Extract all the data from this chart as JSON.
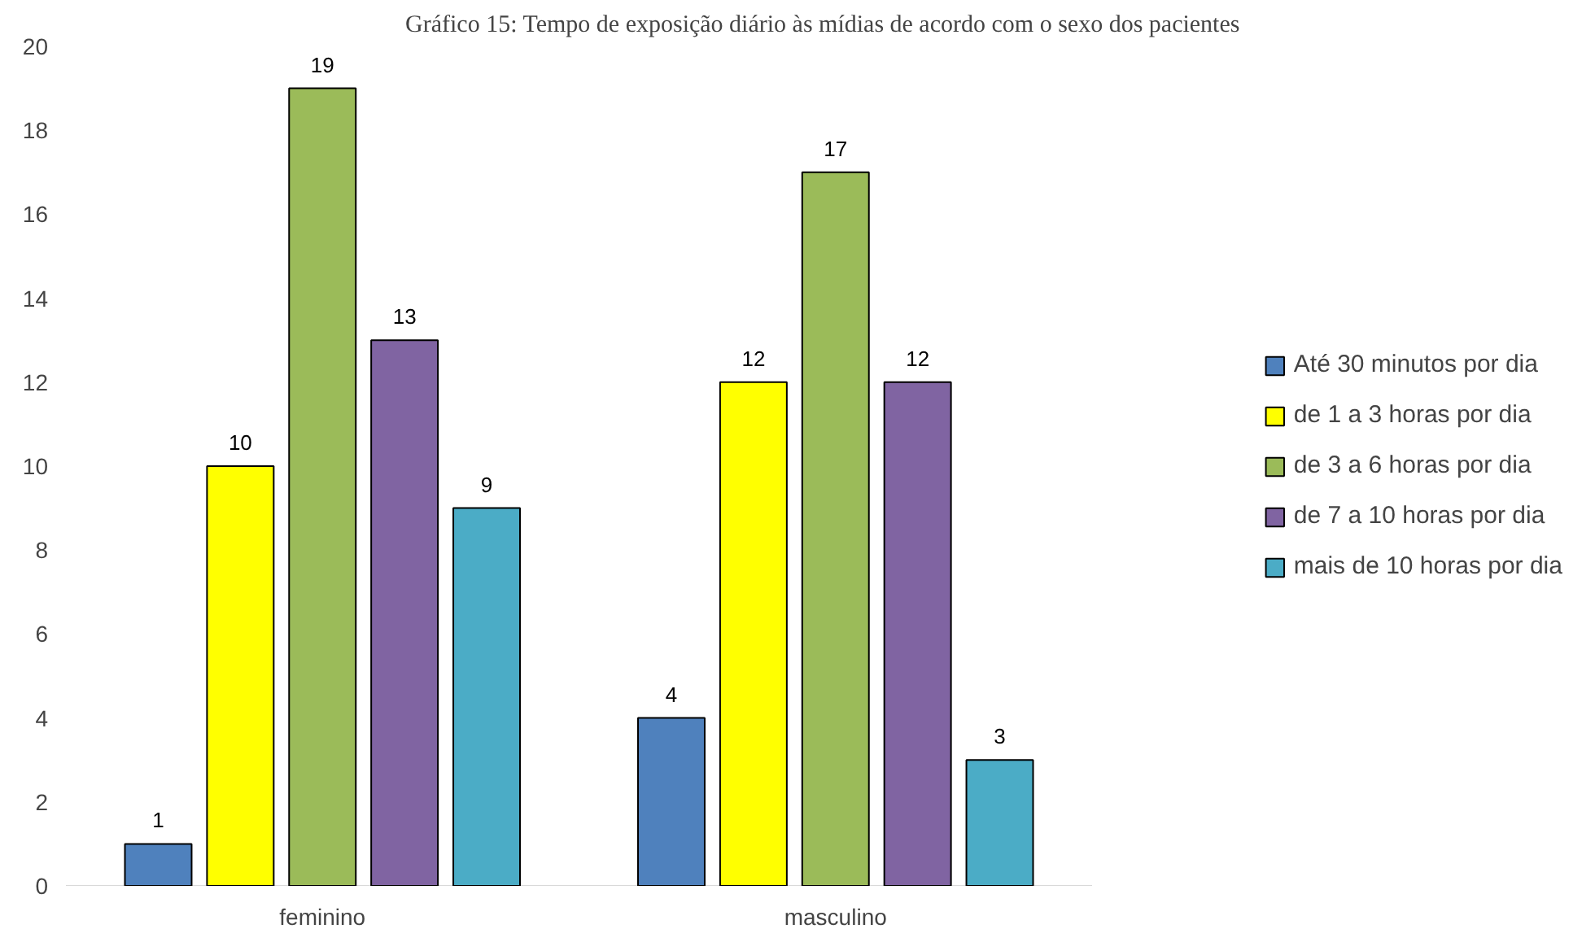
{
  "chart_data": {
    "type": "bar",
    "title": "Gráfico 15: Tempo de exposição diário às mídias de acordo com o sexo dos pacientes",
    "categories": [
      "feminino",
      "masculino"
    ],
    "series": [
      {
        "name": "Até 30 minutos por dia",
        "color": "#4f81bd",
        "values": [
          1,
          4
        ]
      },
      {
        "name": "de 1 a 3 horas por dia",
        "color": "#ffff00",
        "values": [
          10,
          12
        ]
      },
      {
        "name": "de 3 a 6 horas por dia",
        "color": "#9bbb59",
        "values": [
          19,
          17
        ]
      },
      {
        "name": "de 7 a 10 horas por dia",
        "color": "#8064a2",
        "values": [
          13,
          12
        ]
      },
      {
        "name": "mais de 10 horas por dia",
        "color": "#4bacc6",
        "values": [
          9,
          3
        ]
      }
    ],
    "ylim": [
      0,
      20
    ],
    "yticks": [
      0,
      2,
      4,
      6,
      8,
      10,
      12,
      14,
      16,
      18,
      20
    ],
    "grid": false,
    "legend": "right",
    "data_labels": true
  }
}
